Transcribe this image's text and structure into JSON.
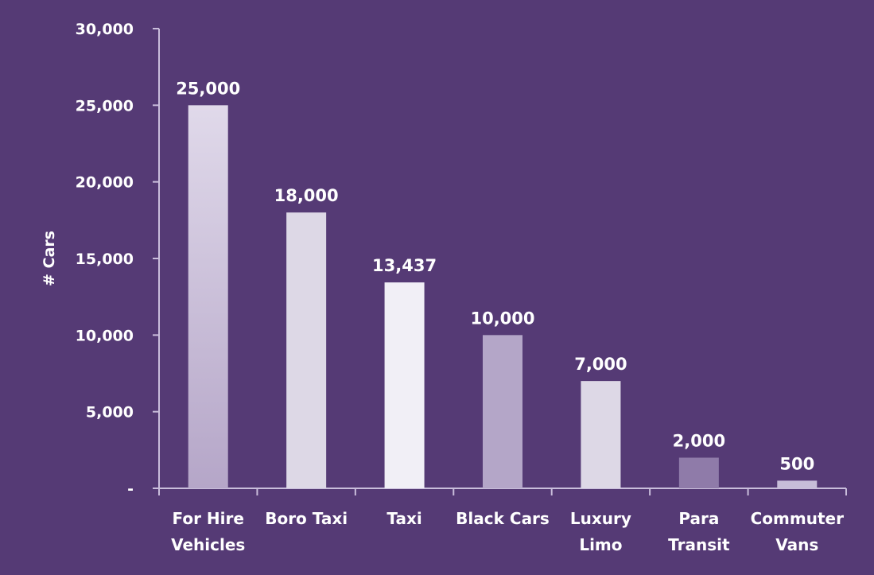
{
  "chart_data": {
    "type": "bar",
    "title": "",
    "xlabel": "",
    "ylabel": "# Cars",
    "ylim": [
      0,
      30000
    ],
    "y_ticks": [
      {
        "value": 0,
        "label": "-"
      },
      {
        "value": 5000,
        "label": "5,000"
      },
      {
        "value": 10000,
        "label": "10,000"
      },
      {
        "value": 15000,
        "label": "15,000"
      },
      {
        "value": 20000,
        "label": "20,000"
      },
      {
        "value": 25000,
        "label": "25,000"
      },
      {
        "value": 30000,
        "label": "30,000"
      }
    ],
    "grid": false,
    "legend": "none",
    "categories": [
      {
        "lines": [
          "For Hire",
          "Vehicles"
        ]
      },
      {
        "lines": [
          "Boro Taxi"
        ]
      },
      {
        "lines": [
          "Taxi"
        ]
      },
      {
        "lines": [
          "Black Cars"
        ]
      },
      {
        "lines": [
          "Luxury",
          "Limo"
        ]
      },
      {
        "lines": [
          "Para",
          "Transit"
        ]
      },
      {
        "lines": [
          "Commuter",
          "Vans"
        ]
      }
    ],
    "values": [
      25000,
      18000,
      13437,
      10000,
      7000,
      2000,
      500
    ],
    "data_labels": [
      "25,000",
      "18,000",
      "13,437",
      "10,000",
      "7,000",
      "2,000",
      "500"
    ],
    "colors": {
      "background": "#553a75",
      "axis": "#c9bddb",
      "bars": [
        "#c6bcd6",
        "#ddd8e6",
        "#f1eff6",
        "#b4a6c8",
        "#ddd8e6",
        "#8f7ba9",
        "#c7bdd8"
      ],
      "text": "#ffffff"
    }
  }
}
